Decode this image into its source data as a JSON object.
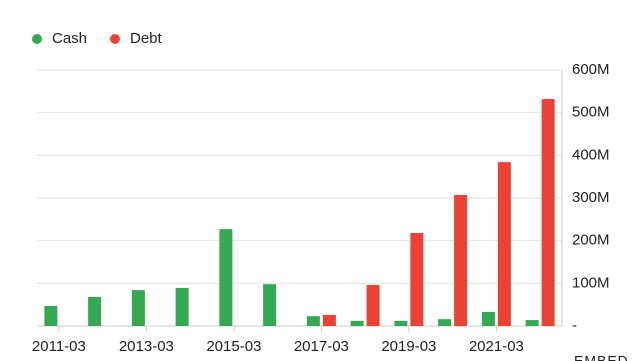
{
  "chart_data": {
    "type": "bar",
    "categories": [
      "2011-03",
      null,
      "2013-03",
      null,
      "2015-03",
      null,
      "2017-03",
      null,
      "2019-03",
      null,
      "2021-03",
      null
    ],
    "series": [
      {
        "name": "Cash",
        "color": "#34a853",
        "values": [
          47000000,
          68000000,
          84000000,
          89000000,
          227000000,
          98000000,
          23000000,
          12000000,
          12000000,
          16000000,
          33000000,
          14000000
        ]
      },
      {
        "name": "Debt",
        "color": "#ea4335",
        "values": [
          0,
          0,
          0,
          0,
          0,
          0,
          26000000,
          96000000,
          218000000,
          307000000,
          384000000,
          532000000
        ]
      }
    ],
    "ylim": [
      0,
      600000000
    ],
    "yticks": [
      {
        "value": 0,
        "label": "-"
      },
      {
        "value": 100000000,
        "label": "100M"
      },
      {
        "value": 200000000,
        "label": "200M"
      },
      {
        "value": 300000000,
        "label": "300M"
      },
      {
        "value": 400000000,
        "label": "400M"
      },
      {
        "value": 500000000,
        "label": "500M"
      },
      {
        "value": 600000000,
        "label": "600M"
      }
    ],
    "grid": true,
    "legend": "top-left",
    "footer_text": "EMBED"
  }
}
